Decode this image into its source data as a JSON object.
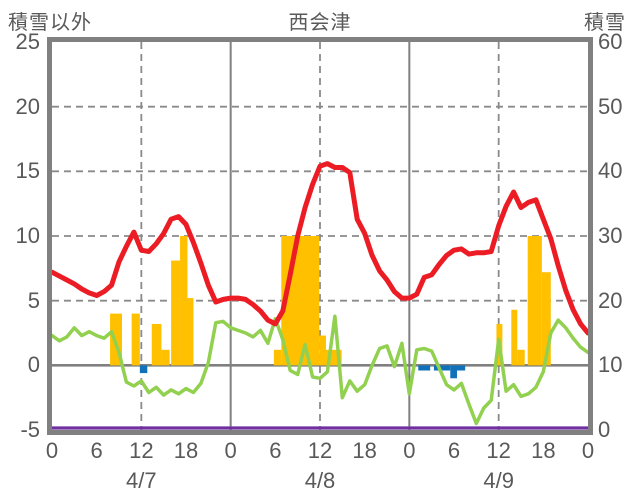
{
  "chart_data": {
    "type": "line+bar",
    "title": "西会津",
    "x_hours_span": 72,
    "x_tick_interval": 6,
    "x_tick_labels": [
      "0",
      "6",
      "12",
      "18",
      "0",
      "6",
      "12",
      "18",
      "0",
      "6",
      "12",
      "18",
      "0"
    ],
    "date_labels": [
      "4/7",
      "4/8",
      "4/9"
    ],
    "left_axis": {
      "title": "積雪以外",
      "min": -5,
      "max": 25,
      "ticks": [
        25,
        20,
        15,
        10,
        5,
        0,
        -5
      ]
    },
    "right_axis": {
      "title": "積雪",
      "min": 0,
      "max": 60,
      "ticks": [
        60,
        50,
        40,
        30,
        20,
        10,
        0
      ]
    },
    "gridlines": {
      "h_dashed_values_left_axis": [
        20,
        15,
        10,
        5
      ],
      "h_solid_values_left_axis": [
        0
      ],
      "v_dashed_hours": [
        12,
        36,
        60
      ],
      "v_solid_hours": [
        24,
        48
      ]
    },
    "series": {
      "red_line": {
        "shape": "line",
        "axis": "left",
        "color": "#ec1c24",
        "x_step_hours": 1,
        "values": [
          7.2,
          6.9,
          6.6,
          6.3,
          5.9,
          5.6,
          5.4,
          5.7,
          6.2,
          8.0,
          9.2,
          10.3,
          8.9,
          8.8,
          9.4,
          10.2,
          11.3,
          11.5,
          10.9,
          9.5,
          7.9,
          6.2,
          4.9,
          5.1,
          5.2,
          5.2,
          5.1,
          4.7,
          4.2,
          3.5,
          3.2,
          4.2,
          7.0,
          10.0,
          12.2,
          14.0,
          15.4,
          15.6,
          15.3,
          15.3,
          14.9,
          11.3,
          10.2,
          8.5,
          7.3,
          6.6,
          5.7,
          5.2,
          5.2,
          5.5,
          6.8,
          7.0,
          7.8,
          8.5,
          8.9,
          9.0,
          8.6,
          8.7,
          8.7,
          8.8,
          10.8,
          12.3,
          13.4,
          12.2,
          12.6,
          12.8,
          11.3,
          9.8,
          7.7,
          5.8,
          4.3,
          3.2,
          2.5
        ]
      },
      "green_line": {
        "shape": "line",
        "axis": "left",
        "color": "#92d050",
        "x_step_hours": 1,
        "values": [
          2.3,
          1.9,
          2.2,
          2.9,
          2.3,
          2.6,
          2.3,
          2.1,
          2.6,
          1.0,
          -1.3,
          -1.6,
          -1.2,
          -2.1,
          -1.7,
          -2.3,
          -1.9,
          -2.2,
          -1.8,
          -2.1,
          -1.4,
          0.2,
          3.3,
          3.4,
          2.9,
          2.7,
          2.5,
          2.2,
          2.7,
          1.7,
          3.6,
          2.0,
          -0.4,
          -0.7,
          1.6,
          -0.9,
          -1.0,
          -0.5,
          3.8,
          -2.5,
          -1.2,
          -2.0,
          -1.5,
          0.0,
          1.3,
          1.5,
          -0.1,
          1.7,
          -2.2,
          1.2,
          1.3,
          1.1,
          -0.2,
          -1.5,
          -1.9,
          -1.4,
          -3.0,
          -4.5,
          -3.3,
          -2.7,
          2.0,
          -2.0,
          -1.5,
          -2.4,
          -2.2,
          -1.7,
          -0.5,
          2.5,
          3.5,
          2.9,
          2.1,
          1.4,
          1.0
        ]
      },
      "orange_bars": {
        "shape": "bar",
        "axis": "left",
        "color": "#ffc000",
        "segments": [
          [
            7.8,
            9.4,
            4.0
          ],
          [
            10.7,
            11.8,
            4.0
          ],
          [
            13.4,
            14.7,
            3.2
          ],
          [
            14.7,
            15.8,
            1.2
          ],
          [
            16.0,
            17.2,
            8.1
          ],
          [
            17.2,
            18.2,
            10.0
          ],
          [
            18.2,
            19.0,
            5.2
          ],
          [
            29.8,
            30.8,
            1.2
          ],
          [
            30.8,
            35.9,
            10.0
          ],
          [
            35.9,
            36.8,
            2.3
          ],
          [
            36.8,
            38.9,
            1.2
          ],
          [
            59.7,
            60.5,
            3.2
          ],
          [
            61.7,
            62.5,
            4.3
          ],
          [
            62.5,
            63.5,
            1.2
          ],
          [
            63.9,
            65.8,
            10.0
          ],
          [
            65.8,
            67.0,
            7.2
          ]
        ]
      },
      "blue_bars": {
        "shape": "bar",
        "axis": "left",
        "color": "#1172ba",
        "segments": [
          [
            11.8,
            12.8,
            -0.6
          ],
          [
            49.2,
            50.8,
            -0.4
          ],
          [
            51.3,
            53.5,
            -0.4
          ],
          [
            53.5,
            54.4,
            -1.0
          ],
          [
            54.4,
            55.5,
            -0.4
          ]
        ]
      },
      "purple_line": {
        "shape": "constant-line",
        "axis": "right",
        "color": "#7030a0",
        "constant": 0
      }
    }
  },
  "colors": {
    "grid": "#8a8a8a",
    "border": "#808080",
    "zero_line": "#808080",
    "text": "#595959",
    "background": "#ffffff"
  }
}
